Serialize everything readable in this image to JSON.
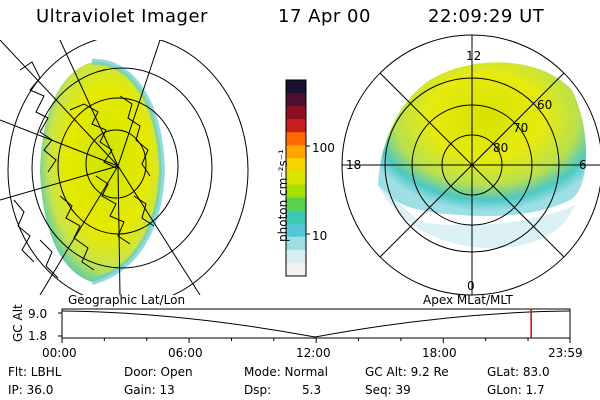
{
  "header": {
    "instrument": "Ultraviolet Imager",
    "date": "17 Apr 00",
    "time": "22:09:29 UT"
  },
  "colorbar": {
    "unit_label": "photon cm⁻²s⁻¹",
    "ticks": [
      "100",
      "10"
    ],
    "colors": [
      "#1a1030",
      "#4b0f30",
      "#8a1020",
      "#c81e1e",
      "#ff6a00",
      "#ffa500",
      "#f5d400",
      "#d8e600",
      "#a6e000",
      "#5bd04a",
      "#3cc8b0",
      "#55c8d8",
      "#9edfe6",
      "#d6eef2",
      "#f2f2f2"
    ]
  },
  "polar_plot": {
    "mlt_labels": {
      "top": "12",
      "left": "18",
      "right": "6",
      "bottom": "0"
    },
    "lat_labels": [
      "60",
      "70",
      "80"
    ]
  },
  "timeline": {
    "left_label": "Geographic Lat/Lon",
    "right_label": "Apex MLat/MLT",
    "y_axis_label": "GC Alt",
    "y_ticks": [
      "9.0",
      "1.8"
    ],
    "x_ticks": [
      "00:00",
      "06:00",
      "12:00",
      "18:00",
      "23:59"
    ],
    "marker_time": "22:09",
    "marker_color": "#d40000"
  },
  "info": {
    "flt": "Flt: LBHL",
    "door": "Door: Open",
    "mode": "Mode: Normal",
    "gcalt": "GC Alt: 9.2 Re",
    "glat": "GLat: 83.0",
    "ip": "IP: 36.0",
    "gain": "Gain: 13",
    "dsp_label": "Dsp:",
    "dsp_value": "5.3",
    "seq": "Seq: 39",
    "glon": "GLon: 1.7"
  }
}
